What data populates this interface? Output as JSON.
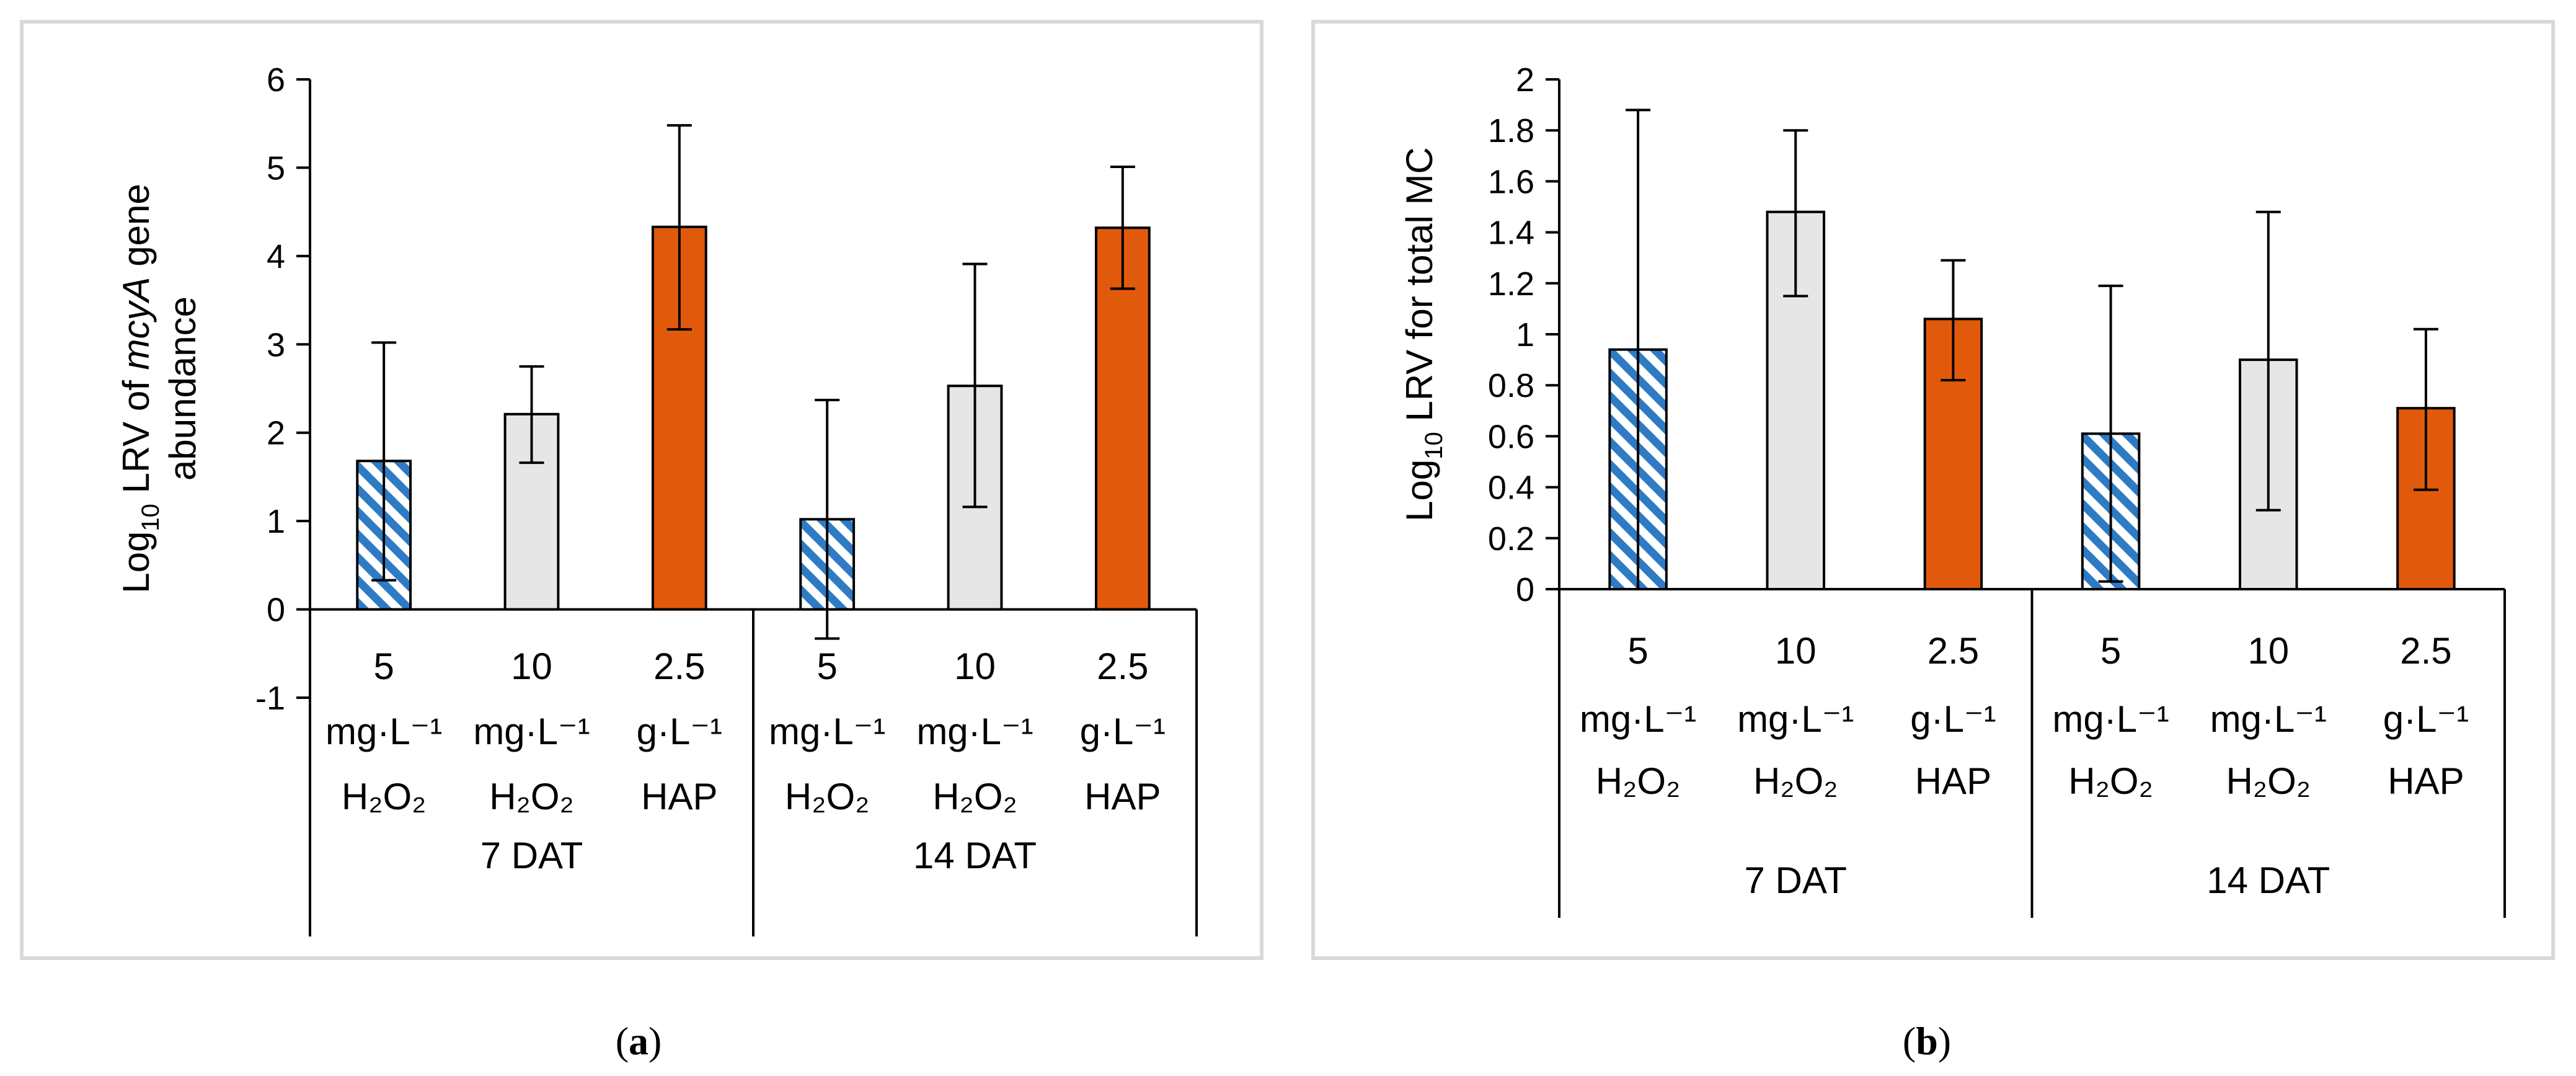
{
  "chart_data": [
    {
      "type": "bar",
      "panel_label": "a",
      "ylabel_prefix": "Log",
      "ylabel_sub": "10",
      "ylabel_rest_pre": " LRV of ",
      "ylabel_italic": "mcyA",
      "ylabel_rest_post": " gene",
      "ylabel_line2": "abundance",
      "ylim": [
        -1,
        6
      ],
      "ytick_labels": [
        "-1",
        "0",
        "1",
        "2",
        "3",
        "4",
        "5",
        "6"
      ],
      "categories": [
        {
          "top": "5",
          "mid": "mg·L⁻¹",
          "bot": "H₂O₂",
          "series": "5 mg·L⁻¹ H₂O₂"
        },
        {
          "top": "10",
          "mid": "mg·L⁻¹",
          "bot": "H₂O₂",
          "series": "10 mg·L⁻¹ H₂O₂"
        },
        {
          "top": "2.5",
          "mid": "g·L⁻¹",
          "bot": "HAP",
          "series": "2.5 g·L⁻¹ HAP"
        },
        {
          "top": "5",
          "mid": "mg·L⁻¹",
          "bot": "H₂O₂",
          "series": "5 mg·L⁻¹ H₂O₂"
        },
        {
          "top": "10",
          "mid": "mg·L⁻¹",
          "bot": "H₂O₂",
          "series": "10 mg·L⁻¹ H₂O₂"
        },
        {
          "top": "2.5",
          "mid": "g·L⁻¹",
          "bot": "HAP",
          "series": "2.5 g·L⁻¹ HAP"
        }
      ],
      "groups": [
        "7 DAT",
        "14 DAT"
      ],
      "values": [
        1.68,
        2.21,
        4.33,
        1.02,
        2.53,
        4.32
      ],
      "err_low": [
        0.33,
        1.66,
        3.17,
        -0.33,
        1.16,
        3.63
      ],
      "err_high": [
        3.02,
        2.75,
        5.48,
        2.37,
        3.91,
        5.01
      ]
    },
    {
      "type": "bar",
      "panel_label": "b",
      "ylabel_prefix": "Log",
      "ylabel_sub": "10",
      "ylabel_rest_pre": " LRV for total MC",
      "ylabel_italic": "",
      "ylabel_rest_post": "",
      "ylabel_line2": "",
      "ylim": [
        0,
        2
      ],
      "ytick_labels": [
        "0",
        "0.2",
        "0.4",
        "0.6",
        "0.8",
        "1",
        "1.2",
        "1.4",
        "1.6",
        "1.8",
        "2"
      ],
      "categories": [
        {
          "top": "5",
          "mid": "mg·L⁻¹",
          "bot": "H₂O₂",
          "series": "5 mg·L⁻¹ H₂O₂"
        },
        {
          "top": "10",
          "mid": "mg·L⁻¹",
          "bot": "H₂O₂",
          "series": "10 mg·L⁻¹ H₂O₂"
        },
        {
          "top": "2.5",
          "mid": "g·L⁻¹",
          "bot": "HAP",
          "series": "2.5 g·L⁻¹ HAP"
        },
        {
          "top": "5",
          "mid": "mg·L⁻¹",
          "bot": "H₂O₂",
          "series": "5 mg·L⁻¹ H₂O₂"
        },
        {
          "top": "10",
          "mid": "mg·L⁻¹",
          "bot": "H₂O₂",
          "series": "10 mg·L⁻¹ H₂O₂"
        },
        {
          "top": "2.5",
          "mid": "g·L⁻¹",
          "bot": "HAP",
          "series": "2.5 g·L⁻¹ HAP"
        }
      ],
      "groups": [
        "7 DAT",
        "14 DAT"
      ],
      "values": [
        0.94,
        1.48,
        1.06,
        0.61,
        0.9,
        0.71
      ],
      "err_low": [
        0.0,
        1.15,
        0.82,
        0.03,
        0.31,
        0.39
      ],
      "err_high": [
        1.88,
        1.8,
        1.29,
        1.19,
        1.48,
        1.02
      ]
    }
  ],
  "colors": {
    "hatch_blue": "#2E7BC4",
    "gray_fill": "#E7E6E6",
    "orange_fill": "#E15A0B",
    "frame": "#D9D9D9"
  }
}
